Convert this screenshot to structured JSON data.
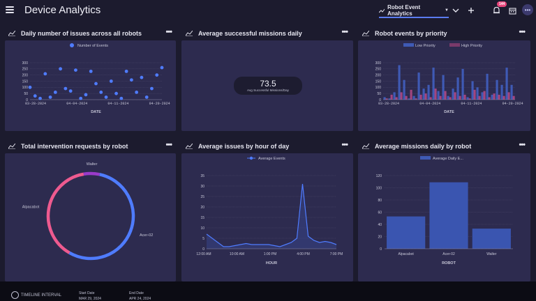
{
  "header": {
    "title": "Device Analytics",
    "dashboard_select": "Robot Event Analytics",
    "notification_count": "144"
  },
  "cards": {
    "daily_issues": {
      "title": "Daily number of issues across all robots"
    },
    "avg_missions": {
      "title": "Average successful missions daily",
      "value": "73.5",
      "label": "Avg Successful Missions/Day"
    },
    "events_priority": {
      "title": "Robot events by priority"
    },
    "interventions": {
      "title": "Total intervention requests by robot"
    },
    "issues_hour": {
      "title": "Average issues by hour of day"
    },
    "missions_robot": {
      "title": "Average missions daily by robot"
    }
  },
  "footer": {
    "interval_label": "TIMELINE INTERVAL",
    "start_label": "Start Date",
    "start_value": "MAR 29, 2024",
    "end_label": "End Date",
    "end_value": "APR 24, 2024"
  },
  "colors": {
    "accent": "#5b7cf0",
    "pink": "#e8467c",
    "card_bg": "#2d2b4f",
    "page_bg": "#1c1b2e"
  },
  "chart_data": [
    {
      "type": "scatter",
      "legend": [
        "Number of Events"
      ],
      "xlabel": "DATE",
      "x_ticks": [
        "03-28-2024",
        "04-04-2024",
        "04-11-2024",
        "04-20-2024"
      ],
      "y_ticks": [
        "0",
        "50",
        "100",
        "150",
        "200",
        "250",
        "300"
      ],
      "ylim": [
        0,
        300
      ],
      "x_range": [
        0,
        26
      ],
      "points": [
        {
          "x": 0,
          "y": 100
        },
        {
          "x": 1,
          "y": 30
        },
        {
          "x": 2,
          "y": 10
        },
        {
          "x": 3,
          "y": 210
        },
        {
          "x": 4,
          "y": 20
        },
        {
          "x": 5,
          "y": 60
        },
        {
          "x": 6,
          "y": 250
        },
        {
          "x": 7,
          "y": 90
        },
        {
          "x": 8,
          "y": 70
        },
        {
          "x": 9,
          "y": 240
        },
        {
          "x": 10,
          "y": 10
        },
        {
          "x": 11,
          "y": 40
        },
        {
          "x": 12,
          "y": 230
        },
        {
          "x": 13,
          "y": 130
        },
        {
          "x": 14,
          "y": 60
        },
        {
          "x": 15,
          "y": 20
        },
        {
          "x": 16,
          "y": 150
        },
        {
          "x": 17,
          "y": 50
        },
        {
          "x": 18,
          "y": 10
        },
        {
          "x": 19,
          "y": 230
        },
        {
          "x": 20,
          "y": 160
        },
        {
          "x": 21,
          "y": 60
        },
        {
          "x": 22,
          "y": 180
        },
        {
          "x": 23,
          "y": 20
        },
        {
          "x": 24,
          "y": 90
        },
        {
          "x": 25,
          "y": 200
        },
        {
          "x": 26,
          "y": 260
        }
      ]
    },
    {
      "type": "bar",
      "legend": [
        "Low Priority",
        "High Priority"
      ],
      "xlabel": "DATE",
      "x_ticks": [
        "03-28-2024",
        "04-04-2024",
        "04-11-2024",
        "04-20-2024"
      ],
      "y_ticks": [
        "0",
        "50",
        "100",
        "150",
        "200",
        "250",
        "300"
      ],
      "ylim": [
        0,
        300
      ],
      "series": [
        {
          "name": "Low Priority",
          "values": [
            20,
            10,
            60,
            280,
            160,
            10,
            30,
            220,
            90,
            120,
            260,
            70,
            200,
            30,
            90,
            180,
            250,
            20,
            150,
            100,
            60,
            210,
            40,
            160,
            120,
            260,
            120
          ]
        },
        {
          "name": "High Priority",
          "values": [
            10,
            40,
            20,
            60,
            30,
            80,
            10,
            40,
            50,
            20,
            90,
            30,
            70,
            20,
            60,
            30,
            40,
            10,
            80,
            30,
            70,
            20,
            50,
            40,
            30,
            60,
            30
          ]
        }
      ]
    },
    {
      "type": "pie",
      "labels": [
        "Acer-02",
        "Alpacabot",
        "Walter"
      ],
      "values": [
        55,
        39,
        6
      ],
      "colors": [
        "#4f7cff",
        "#ee5a8f",
        "#9a3bc9"
      ]
    },
    {
      "type": "area",
      "legend": [
        "Average Events"
      ],
      "xlabel": "HOUR",
      "x_ticks": [
        "12:00 AM",
        "10:00 AM",
        "1:00 PM",
        "4:00 PM",
        "7:00 PM"
      ],
      "y_ticks": [
        "0",
        "5",
        "10",
        "15",
        "20",
        "25",
        "30",
        "35"
      ],
      "ylim": [
        0,
        35
      ],
      "values": [
        7,
        5,
        3,
        1,
        1,
        1.5,
        2,
        2.5,
        2,
        2,
        2,
        2,
        1.5,
        1,
        2,
        3,
        5,
        31,
        6,
        4,
        3,
        3.5,
        3,
        2
      ]
    },
    {
      "type": "bar",
      "legend": [
        "Average Daily E..."
      ],
      "xlabel": "ROBOT",
      "categories": [
        "Alpacabot",
        "Acer-02",
        "Walter"
      ],
      "values": [
        53,
        109,
        33
      ],
      "y_ticks": [
        "0",
        "20",
        "40",
        "60",
        "80",
        "100",
        "120"
      ],
      "ylim": [
        0,
        120
      ]
    }
  ]
}
